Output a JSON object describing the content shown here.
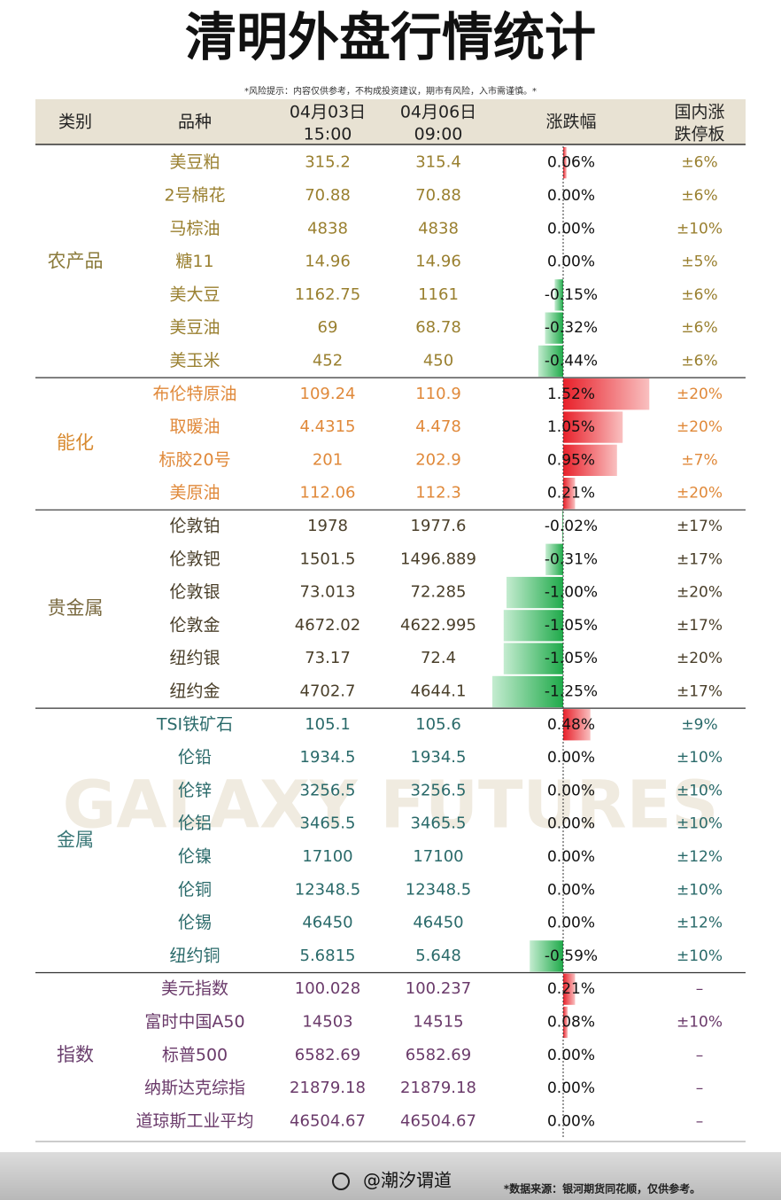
{
  "header": {
    "title": "清明外盘行情统计",
    "note": "*风险提示：内容仅供参考，不构成投资建议，期市有风险，入市需谨慎。*"
  },
  "table": {
    "columns": [
      [
        "类别"
      ],
      [
        "品种"
      ],
      [
        "04月03日",
        "15:00"
      ],
      [
        "04月06日",
        "09:00"
      ],
      [
        "涨跌幅"
      ],
      [
        "国内涨",
        "跌停板"
      ]
    ],
    "groups": [
      {
        "name": "农产品",
        "rows": [
          {
            "name": "美豆粕",
            "prev": "315.2",
            "curr": "315.4",
            "change": 0.06,
            "change_label": "0.06%",
            "limit": "±6%"
          },
          {
            "name": "2号棉花",
            "prev": "70.88",
            "curr": "70.88",
            "change": 0,
            "change_label": "0.00%",
            "limit": "±6%"
          },
          {
            "name": "马棕油",
            "prev": "4838",
            "curr": "4838",
            "change": 0,
            "change_label": "0.00%",
            "limit": "±10%"
          },
          {
            "name": "糖11",
            "prev": "14.96",
            "curr": "14.96",
            "change": 0,
            "change_label": "0.00%",
            "limit": "±5%"
          },
          {
            "name": "美大豆",
            "prev": "1162.75",
            "curr": "1161",
            "change": -0.15,
            "change_label": "-0.15%",
            "limit": "±6%"
          },
          {
            "name": "美豆油",
            "prev": "69",
            "curr": "68.78",
            "change": -0.32,
            "change_label": "-0.32%",
            "limit": "±6%"
          },
          {
            "name": "美玉米",
            "prev": "452",
            "curr": "450",
            "change": -0.44,
            "change_label": "-0.44%",
            "limit": "±6%"
          }
        ]
      },
      {
        "name": "能化",
        "rows": [
          {
            "name": "布伦特原油",
            "prev": "109.24",
            "curr": "110.9",
            "change": 1.52,
            "change_label": "1.52%",
            "limit": "±20%"
          },
          {
            "name": "取暖油",
            "prev": "4.4315",
            "curr": "4.478",
            "change": 1.05,
            "change_label": "1.05%",
            "limit": "±20%"
          },
          {
            "name": "标胶20号",
            "prev": "201",
            "curr": "202.9",
            "change": 0.95,
            "change_label": "0.95%",
            "limit": "±7%"
          },
          {
            "name": "美原油",
            "prev": "112.06",
            "curr": "112.3",
            "change": 0.21,
            "change_label": "0.21%",
            "limit": "±20%"
          }
        ]
      },
      {
        "name": "贵金属",
        "rows": [
          {
            "name": "伦敦铂",
            "prev": "1978",
            "curr": "1977.6",
            "change": -0.02,
            "change_label": "-0.02%",
            "limit": "±17%"
          },
          {
            "name": "伦敦钯",
            "prev": "1501.5",
            "curr": "1496.889",
            "change": -0.31,
            "change_label": "-0.31%",
            "limit": "±17%"
          },
          {
            "name": "伦敦银",
            "prev": "73.013",
            "curr": "72.285",
            "change": -1.0,
            "change_label": "-1.00%",
            "limit": "±20%"
          },
          {
            "name": "伦敦金",
            "prev": "4672.02",
            "curr": "4622.995",
            "change": -1.05,
            "change_label": "-1.05%",
            "limit": "±17%"
          },
          {
            "name": "纽约银",
            "prev": "73.17",
            "curr": "72.4",
            "change": -1.05,
            "change_label": "-1.05%",
            "limit": "±20%"
          },
          {
            "name": "纽约金",
            "prev": "4702.7",
            "curr": "4644.1",
            "change": -1.25,
            "change_label": "-1.25%",
            "limit": "±17%"
          }
        ]
      },
      {
        "name": "金属",
        "rows": [
          {
            "name": "TSI铁矿石",
            "prev": "105.1",
            "curr": "105.6",
            "change": 0.48,
            "change_label": "0.48%",
            "limit": "±9%"
          },
          {
            "name": "伦铅",
            "prev": "1934.5",
            "curr": "1934.5",
            "change": 0,
            "change_label": "0.00%",
            "limit": "±10%"
          },
          {
            "name": "伦锌",
            "prev": "3256.5",
            "curr": "3256.5",
            "change": 0,
            "change_label": "0.00%",
            "limit": "±10%"
          },
          {
            "name": "伦铝",
            "prev": "3465.5",
            "curr": "3465.5",
            "change": 0,
            "change_label": "0.00%",
            "limit": "±10%"
          },
          {
            "name": "伦镍",
            "prev": "17100",
            "curr": "17100",
            "change": 0,
            "change_label": "0.00%",
            "limit": "±12%"
          },
          {
            "name": "伦铜",
            "prev": "12348.5",
            "curr": "12348.5",
            "change": 0,
            "change_label": "0.00%",
            "limit": "±10%"
          },
          {
            "name": "伦锡",
            "prev": "46450",
            "curr": "46450",
            "change": 0,
            "change_label": "0.00%",
            "limit": "±12%"
          },
          {
            "name": "纽约铜",
            "prev": "5.6815",
            "curr": "5.648",
            "change": -0.59,
            "change_label": "-0.59%",
            "limit": "±10%"
          }
        ]
      },
      {
        "name": "指数",
        "rows": [
          {
            "name": "美元指数",
            "prev": "100.028",
            "curr": "100.237",
            "change": 0.21,
            "change_label": "0.21%",
            "limit": "–"
          },
          {
            "name": "富时中国A50",
            "prev": "14503",
            "curr": "14515",
            "change": 0.08,
            "change_label": "0.08%",
            "limit": "±10%"
          },
          {
            "name": "标普500",
            "prev": "6582.69",
            "curr": "6582.69",
            "change": 0,
            "change_label": "0.00%",
            "limit": "–"
          },
          {
            "name": "纳斯达克综指",
            "prev": "21879.18",
            "curr": "21879.18",
            "change": 0,
            "change_label": "0.00%",
            "limit": "–"
          },
          {
            "name": "道琼斯工业平均",
            "prev": "46504.67",
            "curr": "46504.67",
            "change": 0,
            "change_label": "0.00%",
            "limit": "–"
          }
        ]
      }
    ]
  },
  "watermark": "GALAXY FUTURES",
  "footer": {
    "account": "@潮汐谓道",
    "source": "*数据来源：银河期货同花顺，仅供参考。"
  }
}
